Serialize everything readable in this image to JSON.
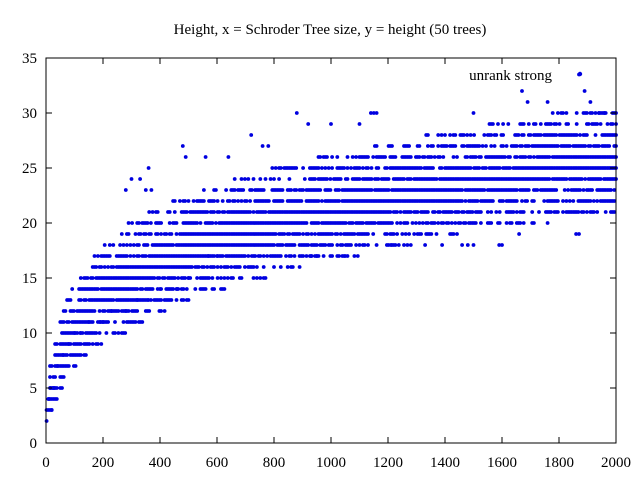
{
  "chart_data": {
    "type": "scatter",
    "title": "Height, x = Schroder Tree size, y = height (50 trees)",
    "xlabel": "",
    "ylabel": "",
    "xlim": [
      0,
      2000
    ],
    "ylim": [
      0,
      35
    ],
    "xticks": [
      0,
      200,
      400,
      600,
      800,
      1000,
      1200,
      1400,
      1600,
      1800,
      2000
    ],
    "yticks": [
      0,
      5,
      10,
      15,
      20,
      25,
      30,
      35
    ],
    "grid": false,
    "legend_position": "top-right",
    "series": [
      {
        "name": "unrank strong",
        "color": "#0000e0",
        "marker": "dot",
        "band_points": [
          [
            0,
            2
          ],
          [
            5,
            3
          ],
          [
            10,
            4
          ],
          [
            20,
            5
          ],
          [
            30,
            6
          ],
          [
            40,
            7
          ],
          [
            55,
            8
          ],
          [
            70,
            9
          ],
          [
            90,
            10
          ],
          [
            120,
            11
          ],
          [
            150,
            12
          ],
          [
            190,
            13
          ],
          [
            240,
            14
          ],
          [
            300,
            15
          ],
          [
            370,
            16
          ],
          [
            460,
            17
          ],
          [
            560,
            18
          ],
          [
            680,
            19
          ],
          [
            820,
            20
          ],
          [
            980,
            21
          ],
          [
            1160,
            22
          ],
          [
            1360,
            23
          ],
          [
            1580,
            24
          ],
          [
            1800,
            25
          ],
          [
            2000,
            25.5
          ]
        ],
        "outliers": [
          [
            1670,
            32
          ],
          [
            1690,
            31
          ],
          [
            1760,
            31
          ],
          [
            1870,
            33.5
          ],
          [
            1890,
            32
          ],
          [
            1910,
            31
          ],
          [
            1940,
            30
          ],
          [
            1960,
            30
          ],
          [
            880,
            30
          ],
          [
            1140,
            30
          ],
          [
            1160,
            30
          ],
          [
            1500,
            30
          ],
          [
            1150,
            30
          ],
          [
            720,
            28
          ],
          [
            760,
            27
          ],
          [
            780,
            27
          ],
          [
            480,
            27
          ],
          [
            490,
            26
          ],
          [
            560,
            26
          ],
          [
            640,
            26
          ],
          [
            920,
            29
          ],
          [
            1000,
            29
          ],
          [
            1100,
            29
          ],
          [
            360,
            25
          ],
          [
            330,
            24
          ],
          [
            280,
            23
          ],
          [
            300,
            24
          ],
          [
            350,
            23
          ],
          [
            370,
            23
          ],
          [
            20,
            3
          ],
          [
            10,
            4
          ],
          [
            1480,
            18
          ],
          [
            1590,
            18
          ],
          [
            1600,
            18
          ],
          [
            1660,
            19
          ],
          [
            1760,
            20
          ],
          [
            1870,
            19
          ],
          [
            1330,
            18
          ],
          [
            1390,
            18
          ],
          [
            1050,
            17
          ],
          [
            930,
            17
          ],
          [
            950,
            17
          ],
          [
            1210,
            18
          ],
          [
            1460,
            18
          ],
          [
            1500,
            18
          ],
          [
            1860,
            19
          ],
          [
            600,
            17
          ],
          [
            570,
            17
          ],
          [
            500,
            15
          ],
          [
            440,
            14
          ],
          [
            460,
            14
          ],
          [
            400,
            14
          ],
          [
            360,
            13
          ],
          [
            320,
            13
          ],
          [
            280,
            12
          ],
          [
            230,
            12
          ],
          [
            200,
            11
          ],
          [
            190,
            11
          ],
          [
            150,
            11
          ],
          [
            120,
            10
          ],
          [
            100,
            10
          ],
          [
            80,
            9
          ],
          [
            60,
            8
          ],
          [
            40,
            7
          ],
          [
            30,
            5
          ],
          [
            25,
            5
          ],
          [
            15,
            5
          ]
        ]
      }
    ]
  }
}
